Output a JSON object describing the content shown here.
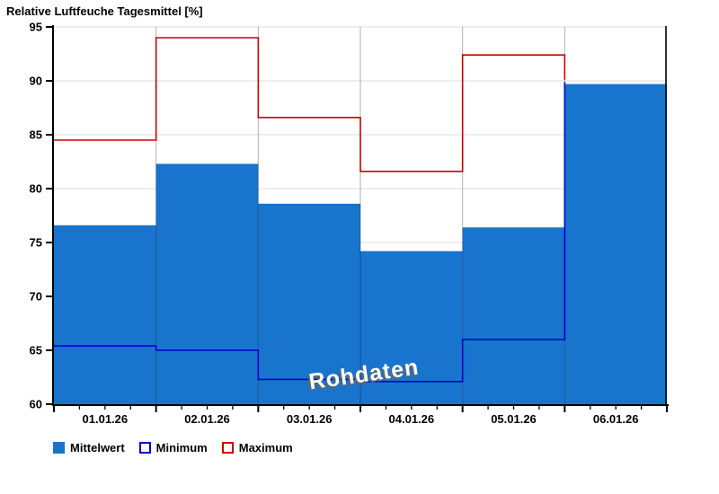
{
  "title": "Relative Luftfeuche Tagesmittel [%]",
  "watermark": "Rohdaten",
  "legend": {
    "items": [
      {
        "label": "Mittelwert",
        "swatch": "filled",
        "color": "#1874CD"
      },
      {
        "label": "Minimum",
        "swatch": "outline",
        "color": "#0000CC"
      },
      {
        "label": "Maximum",
        "swatch": "outline",
        "color": "#CC0000"
      }
    ]
  },
  "colors": {
    "bar_fill": "#1874CD",
    "bar_separator": "rgba(0,0,0,0.3)",
    "min_line": "#0000CC",
    "max_line": "#CC0000",
    "grid": "#e4e4e4",
    "axis": "#000000",
    "watermark_text": "#ffffff",
    "watermark_shadow": "#666666"
  },
  "chart_data": {
    "type": "bar",
    "title": "Relative Luftfeuche Tagesmittel [%]",
    "categories": [
      "01.01.26",
      "02.01.26",
      "03.01.26",
      "04.01.26",
      "05.01.26",
      "06.01.26"
    ],
    "series": [
      {
        "name": "Mittelwert",
        "type": "bar",
        "values": [
          76.6,
          82.3,
          78.6,
          74.2,
          76.4,
          89.7
        ]
      },
      {
        "name": "Minimum",
        "type": "step-line",
        "values": [
          65.4,
          65.0,
          62.3,
          62.1,
          66.0
        ],
        "terminal_value": 89.9
      },
      {
        "name": "Maximum",
        "type": "step-line",
        "values": [
          84.5,
          94.0,
          86.6,
          81.6,
          92.4
        ],
        "terminal_value": 90.1
      }
    ],
    "ylim": [
      60,
      95
    ],
    "ytick_step": 5,
    "ytick_labels": [
      "60",
      "65",
      "70",
      "75",
      "80",
      "85",
      "90",
      "95"
    ],
    "minor_xticks_per_day": 4,
    "grid": "horizontal",
    "legend_position": "bottom-left",
    "watermark": "Rohdaten"
  }
}
